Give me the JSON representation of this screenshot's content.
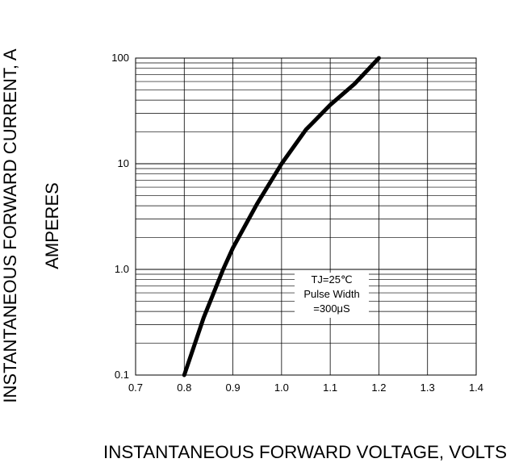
{
  "chart_data": {
    "type": "line",
    "title": "",
    "xlabel": "INSTANTANEOUS FORWARD VOLTAGE,  VOLTS",
    "ylabel_lines": [
      "INSTANTANEOUS FORWARD CURRENT, A",
      "AMPERES"
    ],
    "xscale": "linear",
    "yscale": "log",
    "xlim": [
      0.7,
      1.4
    ],
    "ylim": [
      0.1,
      100
    ],
    "x_ticks": [
      "0.7",
      "0.8",
      "0.9",
      "1.0",
      "1.1",
      "1.2",
      "1.3",
      "1.4"
    ],
    "y_ticks": [
      "0.1",
      "1.0",
      "10",
      "100"
    ],
    "grid": true,
    "annotation": [
      "TJ=25℃",
      "Pulse Width",
      "=300μS"
    ],
    "series": [
      {
        "x": [
          0.8,
          0.84,
          0.88,
          0.9,
          0.95,
          1.0,
          1.05,
          1.1,
          1.15,
          1.2
        ],
        "y": [
          0.1,
          0.35,
          1.0,
          1.6,
          4.2,
          10,
          21,
          36,
          57,
          100
        ]
      }
    ],
    "colors": {
      "line": "#000000",
      "grid": "#000000"
    }
  }
}
